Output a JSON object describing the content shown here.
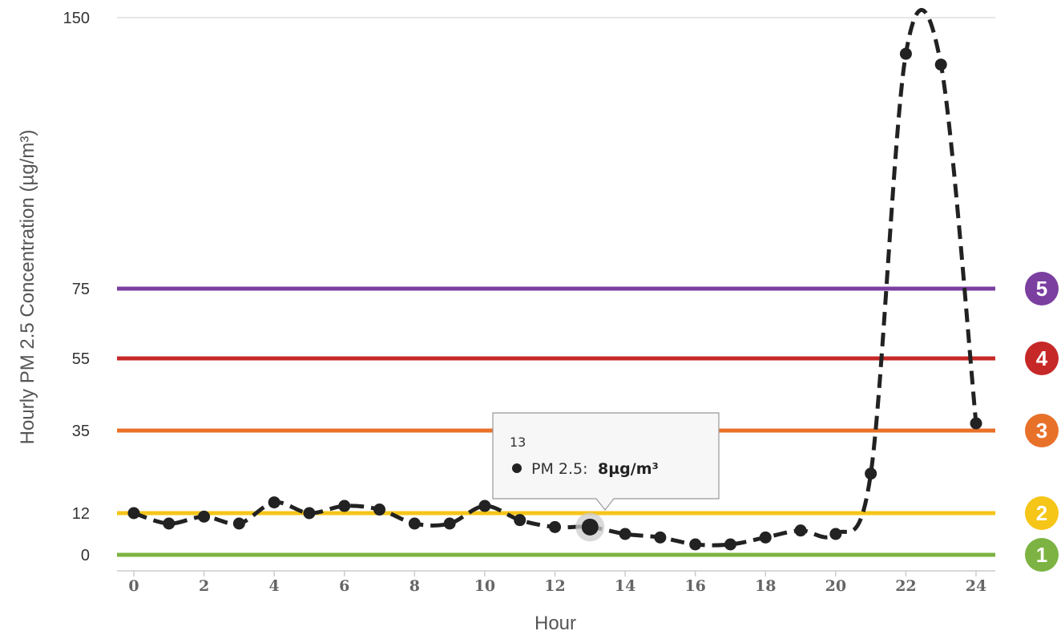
{
  "chart_data": {
    "type": "line",
    "xlabel": "Hour",
    "ylabel": "Hourly PM 2.5 Concentration (µg/m³)",
    "y_ticks": [
      0,
      12,
      35,
      55,
      75,
      150
    ],
    "x_ticks": [
      0,
      2,
      4,
      6,
      8,
      10,
      12,
      14,
      16,
      18,
      20,
      22,
      24
    ],
    "ylim": [
      0,
      150
    ],
    "xlim": [
      0,
      24
    ],
    "grid": false,
    "series": [
      {
        "name": "PM 2.5",
        "x": [
          0,
          1,
          2,
          3,
          4,
          5,
          6,
          7,
          8,
          9,
          10,
          11,
          12,
          13,
          14,
          15,
          16,
          17,
          18,
          19,
          20,
          21,
          22,
          23,
          24
        ],
        "y": [
          12,
          9,
          11,
          9,
          15,
          12,
          14,
          13,
          9,
          9,
          14,
          10,
          8,
          8,
          6,
          5,
          3,
          3,
          5,
          7,
          6,
          23,
          140,
          137,
          37
        ],
        "style": "dashed",
        "color": "#222222"
      }
    ],
    "thresholds": [
      {
        "value": 0,
        "level": "1",
        "color": "#7cb342"
      },
      {
        "value": 12,
        "level": "2",
        "color": "#f5c518"
      },
      {
        "value": 35,
        "level": "3",
        "color": "#e8712a"
      },
      {
        "value": 55,
        "level": "4",
        "color": "#c62828"
      },
      {
        "value": 75,
        "level": "5",
        "color": "#7b3fa0"
      }
    ],
    "tooltip": {
      "x": "13",
      "label": "PM 2.5:",
      "value": "8µg/m³",
      "point_index": 13
    }
  }
}
